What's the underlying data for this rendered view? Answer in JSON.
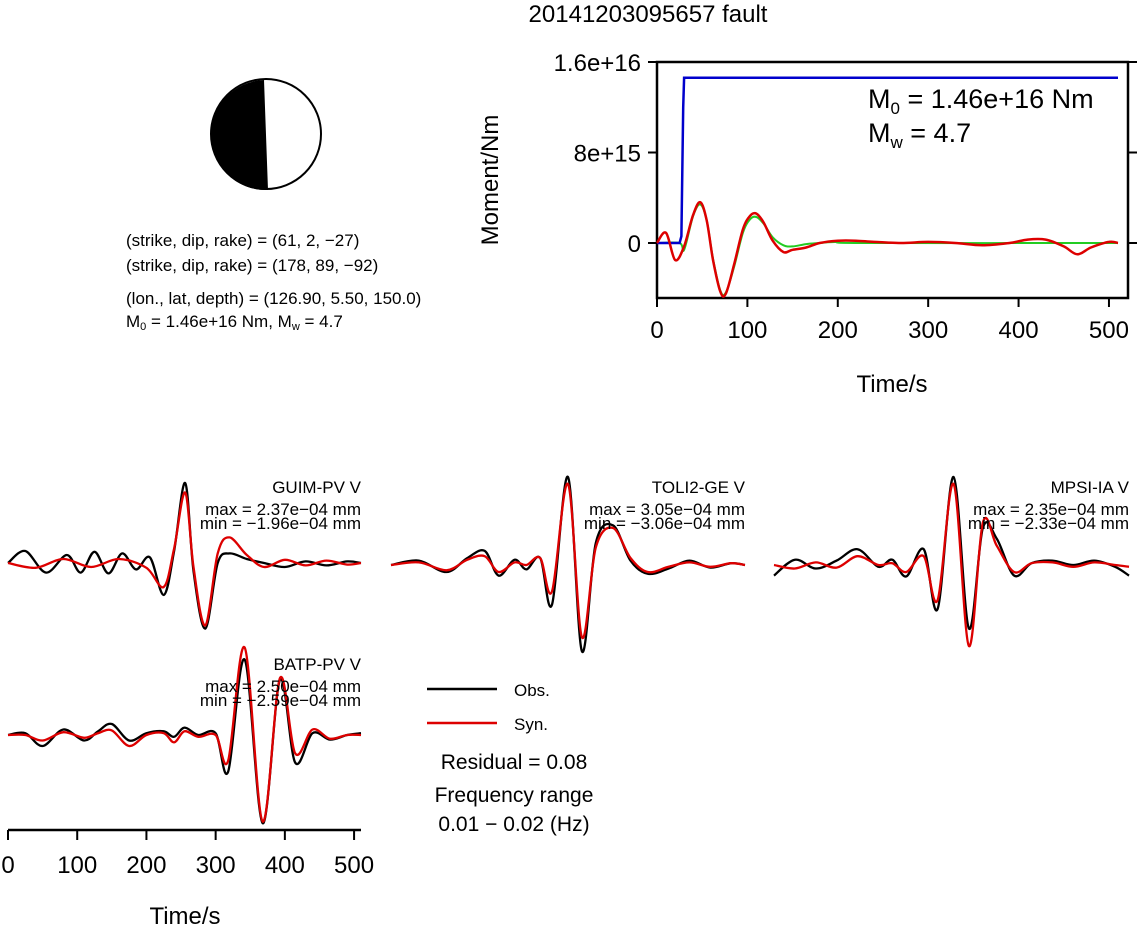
{
  "title": "20141203095657 fault",
  "info": {
    "np1": "(strike, dip, rake) = (61, 2, −27)",
    "np2": "(strike, dip, rake) = (178, 89, −92)",
    "loc": "(lon., lat, depth) = (126.90, 5.50, 150.0)",
    "m0_lab": "M",
    "m0_sub": "0",
    "m0_val": " = 1.46e+16 Nm, ",
    "mw_lab": "M",
    "mw_sub": "w",
    "mw_val": " = 4.7"
  },
  "moment_box": {
    "m0_lab": "M",
    "m0_sub": "0",
    "m0_val": " = 1.46e+16 Nm",
    "mw_lab": "M",
    "mw_sub": "w",
    "mw_val": " = 4.7"
  },
  "legend": {
    "obs": "Obs.",
    "syn": "Syn.",
    "residual": "Residual = 0.08",
    "freq1": "Frequency range",
    "freq2": "0.01 − 0.02 (Hz)"
  },
  "colors": {
    "moment": "#0000cc",
    "stf": "#22cc22",
    "syn": "#dd0000",
    "obs": "#000000"
  },
  "chart_data": [
    {
      "type": "line",
      "name": "moment",
      "xlabel": "Time/s",
      "ylabel": "Moment/Nm",
      "xlim": [
        0,
        510
      ],
      "ylim": [
        -4800000000000000.0,
        1.6e+16
      ],
      "xticks": [
        "0",
        "100",
        "200",
        "300",
        "400",
        "500"
      ],
      "yticks": [
        "0",
        "8e+15",
        "1.6e+16"
      ],
      "moment_curve": {
        "x": [
          0,
          25,
          27,
          29,
          30,
          510
        ],
        "y": [
          0,
          0,
          600000000000000.0,
          1.2e+16,
          1.46e+16,
          1.46e+16
        ]
      },
      "stf_synthetic": {
        "x": [
          0,
          10,
          20,
          30,
          40,
          48,
          55,
          62,
          70,
          76,
          85,
          95,
          103,
          110,
          118,
          128,
          140,
          150,
          165,
          180,
          200,
          220,
          240,
          270,
          300,
          330,
          360,
          390,
          410,
          430,
          450,
          465,
          480,
          500,
          510
        ],
        "y": [
          0,
          900000000000000.0,
          -1500000000000000.0,
          -300000000000000.0,
          2500000000000000.0,
          3600000000000000.0,
          2000000000000000.0,
          -1500000000000000.0,
          -4300000000000000.0,
          -4500000000000000.0,
          -2000000000000000.0,
          1200000000000000.0,
          2400000000000000.0,
          2600000000000000.0,
          1800000000000000.0,
          200000000000000.0,
          -800000000000000.0,
          -600000000000000.0,
          -400000000000000.0,
          0.0,
          200000000000000.0,
          200000000000000.0,
          100000000000000.0,
          0.0,
          100000000000000.0,
          0.0,
          -200000000000000.0,
          0.0,
          300000000000000.0,
          300000000000000.0,
          -300000000000000.0,
          -1000000000000000.0,
          -400000000000000.0,
          100000000000000.0,
          0.0
        ]
      },
      "stf_green": {
        "x": [
          0,
          25,
          30,
          40,
          48,
          55,
          62,
          70,
          76,
          85,
          95,
          103,
          110,
          118,
          128,
          140,
          150,
          165,
          180,
          200,
          230,
          510
        ],
        "y": [
          0,
          0,
          -600000000000000.0,
          2400000000000000.0,
          3400000000000000.0,
          2000000000000000.0,
          -1400000000000000.0,
          -4200000000000000.0,
          -4400000000000000.0,
          -2200000000000000.0,
          900000000000000.0,
          2100000000000000.0,
          2300000000000000.0,
          1700000000000000.0,
          500000000000000.0,
          -200000000000000.0,
          -300000000000000.0,
          -100000000000000.0,
          0.0,
          100000000000000.0,
          0.0,
          0.0
        ]
      }
    },
    {
      "type": "line",
      "name": "GUIM-PV V",
      "label": "GUIM-PV V",
      "max": "max = 2.37e−04 mm",
      "min": "min = −1.96e−04 mm",
      "xlim": [
        0,
        510
      ],
      "ylim": [
        -1.0,
        1.0
      ],
      "obs": {
        "x": [
          0,
          25,
          55,
          85,
          105,
          125,
          145,
          165,
          185,
          205,
          225,
          240,
          256,
          268,
          285,
          303,
          320,
          345,
          370,
          400,
          430,
          460,
          490,
          510
        ],
        "y": [
          0.0,
          0.15,
          -0.12,
          0.1,
          -0.12,
          0.14,
          -0.13,
          0.12,
          -0.08,
          0.07,
          -0.4,
          0.15,
          1.0,
          -0.1,
          -0.82,
          0.0,
          0.12,
          0.05,
          0.0,
          -0.05,
          0.02,
          -0.03,
          0.02,
          0.0
        ]
      },
      "syn": {
        "x": [
          0,
          40,
          80,
          120,
          160,
          200,
          225,
          240,
          256,
          268,
          285,
          303,
          320,
          345,
          370,
          400,
          430,
          460,
          490,
          510
        ],
        "y": [
          0.0,
          -0.06,
          0.05,
          -0.05,
          0.05,
          -0.06,
          -0.3,
          0.18,
          0.88,
          -0.05,
          -0.78,
          0.12,
          0.32,
          0.1,
          -0.05,
          0.04,
          -0.03,
          0.03,
          -0.02,
          0.0
        ]
      }
    },
    {
      "type": "line",
      "name": "TOLI2-GE V",
      "label": "TOLI2-GE V",
      "max": "max = 3.05e−04 mm",
      "min": "min = −3.06e−04 mm",
      "xlim": [
        0,
        510
      ],
      "ylim": [
        -1.0,
        1.0
      ],
      "obs": {
        "x": [
          0,
          40,
          80,
          110,
          135,
          155,
          178,
          195,
          215,
          232,
          255,
          275,
          295,
          320,
          345,
          370,
          400,
          430,
          460,
          490,
          510
        ],
        "y": [
          0.0,
          0.05,
          -0.08,
          0.08,
          0.16,
          -0.12,
          0.06,
          -0.05,
          0.08,
          -0.45,
          1.0,
          -0.98,
          0.25,
          0.45,
          0.05,
          -0.1,
          -0.04,
          0.05,
          -0.03,
          0.02,
          0.0
        ]
      },
      "syn": {
        "x": [
          0,
          40,
          80,
          110,
          135,
          155,
          178,
          195,
          215,
          232,
          255,
          275,
          295,
          320,
          345,
          370,
          400,
          430,
          460,
          490,
          510
        ],
        "y": [
          0.0,
          0.03,
          -0.06,
          0.06,
          0.1,
          -0.08,
          0.03,
          0.0,
          0.08,
          -0.3,
          0.92,
          -0.82,
          0.2,
          0.42,
          0.08,
          -0.08,
          -0.02,
          0.03,
          -0.02,
          0.02,
          0.0
        ]
      }
    },
    {
      "type": "line",
      "name": "MPSI-IA V",
      "label": "MPSI-IA V",
      "max": "max = 2.35e−04 mm",
      "min": "min = −2.33e−04 mm",
      "xlim": [
        0,
        510
      ],
      "ylim": [
        -1.0,
        1.0
      ],
      "obs": {
        "x": [
          0,
          30,
          60,
          90,
          120,
          150,
          170,
          190,
          215,
          235,
          258,
          280,
          300,
          320,
          345,
          370,
          400,
          430,
          460,
          490,
          510
        ],
        "y": [
          -0.12,
          0.06,
          -0.04,
          0.05,
          0.18,
          -0.02,
          0.06,
          -0.13,
          0.18,
          -0.5,
          1.0,
          -0.72,
          0.42,
          0.3,
          -0.12,
          0.02,
          0.05,
          0.0,
          0.05,
          -0.02,
          -0.12
        ]
      },
      "syn": {
        "x": [
          0,
          30,
          60,
          90,
          120,
          150,
          170,
          190,
          215,
          235,
          258,
          280,
          300,
          320,
          345,
          370,
          400,
          430,
          460,
          490,
          510
        ],
        "y": [
          0.0,
          -0.04,
          0.03,
          -0.03,
          0.1,
          0.0,
          0.02,
          -0.08,
          0.1,
          -0.4,
          0.92,
          -0.92,
          0.48,
          0.22,
          -0.08,
          0.02,
          0.03,
          -0.02,
          0.03,
          0.0,
          -0.02
        ]
      }
    },
    {
      "type": "line",
      "name": "BATP-PV V",
      "label": "BATP-PV V",
      "max": "max = 2.50e−04 mm",
      "min": "min = −2.59e−04 mm",
      "xlabel": "Time/s",
      "xlim": [
        0,
        510
      ],
      "ylim": [
        -1.0,
        1.0
      ],
      "xticks": [
        "0",
        "100",
        "200",
        "300",
        "400",
        "500"
      ],
      "obs": {
        "x": [
          0,
          25,
          50,
          80,
          110,
          130,
          150,
          175,
          200,
          225,
          240,
          255,
          275,
          300,
          318,
          342,
          368,
          393,
          415,
          440,
          465,
          490,
          510
        ],
        "y": [
          0.0,
          0.02,
          -0.12,
          0.06,
          -0.06,
          0.04,
          0.12,
          -0.06,
          0.02,
          0.04,
          -0.02,
          0.08,
          0.0,
          0.02,
          -0.4,
          0.82,
          -0.96,
          0.6,
          -0.3,
          0.02,
          -0.05,
          0.0,
          0.02
        ]
      },
      "syn": {
        "x": [
          0,
          25,
          50,
          80,
          110,
          130,
          150,
          175,
          200,
          225,
          240,
          255,
          275,
          300,
          318,
          342,
          368,
          393,
          415,
          440,
          465,
          490,
          510
        ],
        "y": [
          0.0,
          0.0,
          -0.06,
          0.03,
          -0.03,
          0.02,
          0.05,
          -0.12,
          0.0,
          0.02,
          -0.08,
          0.04,
          -0.02,
          0.0,
          -0.28,
          0.95,
          -0.94,
          0.62,
          -0.2,
          0.06,
          -0.04,
          0.0,
          0.0
        ]
      }
    }
  ]
}
